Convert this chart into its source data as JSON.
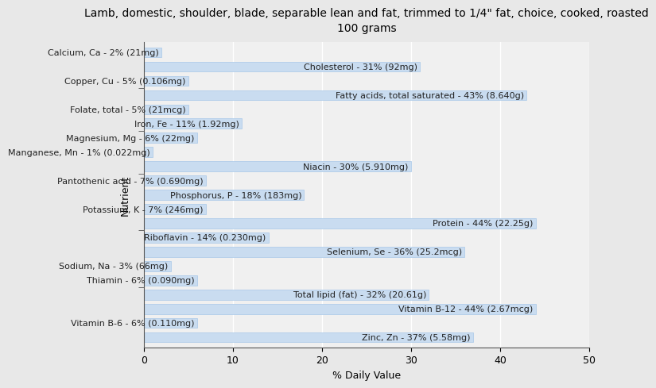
{
  "title": "Lamb, domestic, shoulder, blade, separable lean and fat, trimmed to 1/4\" fat, choice, cooked, roasted\n100 grams",
  "xlabel": "% Daily Value",
  "ylabel": "Nutrient",
  "xlim": [
    0,
    50
  ],
  "bar_color": "#c9dcf0",
  "bar_edge_color": "#a8c8e8",
  "background_color": "#e8e8e8",
  "plot_bg_color": "#f0f0f0",
  "nutrients": [
    {
      "label": "Calcium, Ca - 2% (21mg)",
      "value": 2
    },
    {
      "label": "Cholesterol - 31% (92mg)",
      "value": 31
    },
    {
      "label": "Copper, Cu - 5% (0.106mg)",
      "value": 5
    },
    {
      "label": "Fatty acids, total saturated - 43% (8.640g)",
      "value": 43
    },
    {
      "label": "Folate, total - 5% (21mcg)",
      "value": 5
    },
    {
      "label": "Iron, Fe - 11% (1.92mg)",
      "value": 11
    },
    {
      "label": "Magnesium, Mg - 6% (22mg)",
      "value": 6
    },
    {
      "label": "Manganese, Mn - 1% (0.022mg)",
      "value": 1
    },
    {
      "label": "Niacin - 30% (5.910mg)",
      "value": 30
    },
    {
      "label": "Pantothenic acid - 7% (0.690mg)",
      "value": 7
    },
    {
      "label": "Phosphorus, P - 18% (183mg)",
      "value": 18
    },
    {
      "label": "Potassium, K - 7% (246mg)",
      "value": 7
    },
    {
      "label": "Protein - 44% (22.25g)",
      "value": 44
    },
    {
      "label": "Riboflavin - 14% (0.230mg)",
      "value": 14
    },
    {
      "label": "Selenium, Se - 36% (25.2mcg)",
      "value": 36
    },
    {
      "label": "Sodium, Na - 3% (66mg)",
      "value": 3
    },
    {
      "label": "Thiamin - 6% (0.090mg)",
      "value": 6
    },
    {
      "label": "Total lipid (fat) - 32% (20.61g)",
      "value": 32
    },
    {
      "label": "Vitamin B-12 - 44% (2.67mcg)",
      "value": 44
    },
    {
      "label": "Vitamin B-6 - 6% (0.110mg)",
      "value": 6
    },
    {
      "label": "Zinc, Zn - 37% (5.58mg)",
      "value": 37
    }
  ],
  "title_fontsize": 10,
  "label_fontsize": 8,
  "axis_fontsize": 9,
  "xticks": [
    0,
    10,
    20,
    30,
    40,
    50
  ]
}
